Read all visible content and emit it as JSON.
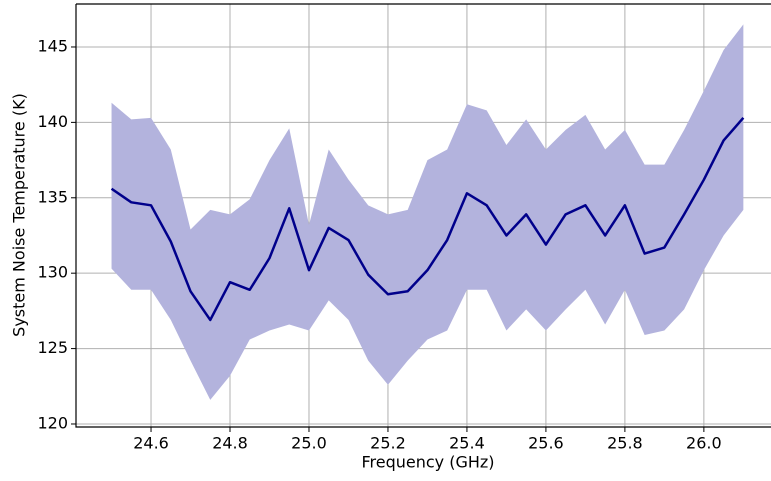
{
  "chart_data": {
    "type": "line",
    "x_label": "Frequency (GHz)",
    "y_label": "System Noise Temperature (K)",
    "x": [
      24.5,
      24.55,
      24.6,
      24.65,
      24.7,
      24.75,
      24.8,
      24.85,
      24.9,
      24.95,
      25.0,
      25.05,
      25.1,
      25.15,
      25.2,
      25.25,
      25.3,
      25.35,
      25.4,
      25.45,
      25.5,
      25.55,
      25.6,
      25.65,
      25.7,
      25.75,
      25.8,
      25.85,
      25.9,
      25.95,
      26.0,
      26.05,
      26.1
    ],
    "values": [
      135.6,
      134.7,
      134.5,
      132.1,
      128.8,
      126.9,
      129.4,
      128.9,
      131.0,
      134.3,
      130.2,
      133.0,
      132.2,
      129.9,
      128.6,
      128.8,
      130.2,
      132.2,
      135.3,
      134.5,
      132.5,
      133.9,
      131.9,
      133.9,
      134.5,
      132.5,
      134.5,
      131.3,
      131.7,
      133.9,
      136.2,
      138.8,
      140.3
    ],
    "lower": [
      130.3,
      128.9,
      128.9,
      126.9,
      124.2,
      121.6,
      123.2,
      125.6,
      126.2,
      126.6,
      126.2,
      128.2,
      126.9,
      124.2,
      122.6,
      124.2,
      125.6,
      126.2,
      128.9,
      128.9,
      126.2,
      127.6,
      126.2,
      127.6,
      128.9,
      126.6,
      128.9,
      125.9,
      126.2,
      127.6,
      130.2,
      132.5,
      134.2
    ],
    "upper": [
      141.3,
      140.2,
      140.3,
      138.2,
      132.9,
      134.2,
      133.9,
      134.9,
      137.5,
      139.6,
      133.2,
      138.2,
      136.2,
      134.5,
      133.9,
      134.2,
      137.5,
      138.2,
      141.2,
      140.8,
      138.5,
      140.2,
      138.2,
      139.5,
      140.5,
      138.2,
      139.5,
      137.2,
      137.2,
      139.5,
      142.1,
      144.8,
      146.5
    ],
    "color": "#00008b",
    "band_color": "#b3b3dd",
    "xlim": [
      24.41,
      26.17
    ],
    "ylim": [
      119.8,
      147.85
    ],
    "xticks": [
      24.6,
      24.8,
      {
        "value": 25.0,
        "label": "25.0"
      },
      25.2,
      25.4,
      25.6,
      25.8,
      {
        "value": 26.0,
        "label": "26.0"
      }
    ],
    "yticks": [
      120,
      125,
      130,
      135,
      140,
      145
    ],
    "grid": true
  }
}
